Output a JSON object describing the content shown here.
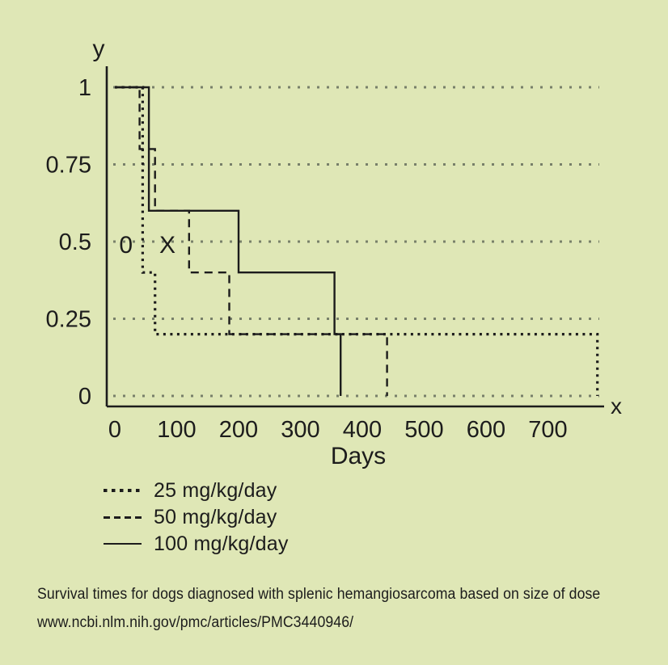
{
  "figure": {
    "background_color": "#dfe7b6",
    "line_color": "#1c1c1c",
    "grid_color": "#78806a",
    "caption": "Survival times for dogs diagnosed with splenic hemangiosarcoma based on size of dose",
    "source_url": "www.ncbi.nlm.nih.gov/pmc/articles/PMC3440946/"
  },
  "axes": {
    "y_axis_letter": "y",
    "x_axis_letter": "x",
    "x_label": "Days",
    "y_tick_labels": [
      "1",
      "0.75",
      "0.5",
      "0.25",
      "0"
    ],
    "x_tick_labels": [
      "0",
      "100",
      "200",
      "300",
      "400",
      "500",
      "600",
      "700"
    ]
  },
  "annotations": [
    {
      "text": "0",
      "day": 18,
      "y": 0.49
    },
    {
      "text": "X",
      "day": 85,
      "y": 0.49
    }
  ],
  "legend": {
    "items": [
      {
        "label": "25 mg/kg/day",
        "style": "dotted"
      },
      {
        "label": "50 mg/kg/day",
        "style": "dashed"
      },
      {
        "label": "100 mg/kg/day",
        "style": "solid"
      }
    ]
  },
  "chart_data": {
    "type": "line",
    "subtype": "kaplan-meier-step-survival",
    "title": "Survival times for dogs diagnosed with splenic hemangiosarcoma based on size of dose",
    "xlabel": "Days",
    "ylabel": "",
    "xlim": [
      0,
      800
    ],
    "ylim": [
      0,
      1
    ],
    "x_ticks": [
      0,
      100,
      200,
      300,
      400,
      500,
      600,
      700
    ],
    "y_ticks": [
      1,
      0.75,
      0.5,
      0.25,
      0
    ],
    "grid": "horizontal dotted gridlines at each y tick",
    "legend_position": "bottom-left",
    "series": [
      {
        "name": "25 mg/kg/day",
        "dash": "dotted",
        "points": [
          [
            0,
            1
          ],
          [
            45,
            1
          ],
          [
            45,
            0.4
          ],
          [
            65,
            0.4
          ],
          [
            65,
            0.2
          ],
          [
            780,
            0.2
          ],
          [
            780,
            0
          ]
        ]
      },
      {
        "name": "50 mg/kg/day",
        "dash": "dashed",
        "points": [
          [
            0,
            1
          ],
          [
            40,
            1
          ],
          [
            40,
            0.8
          ],
          [
            65,
            0.8
          ],
          [
            65,
            0.6
          ],
          [
            120,
            0.6
          ],
          [
            120,
            0.4
          ],
          [
            185,
            0.4
          ],
          [
            185,
            0.2
          ],
          [
            440,
            0.2
          ],
          [
            440,
            0
          ]
        ]
      },
      {
        "name": "100 mg/kg/day",
        "dash": "solid",
        "points": [
          [
            0,
            1
          ],
          [
            55,
            1
          ],
          [
            55,
            0.6
          ],
          [
            200,
            0.6
          ],
          [
            200,
            0.4
          ],
          [
            355,
            0.4
          ],
          [
            355,
            0.2
          ],
          [
            365,
            0.2
          ],
          [
            365,
            0
          ]
        ]
      }
    ]
  }
}
